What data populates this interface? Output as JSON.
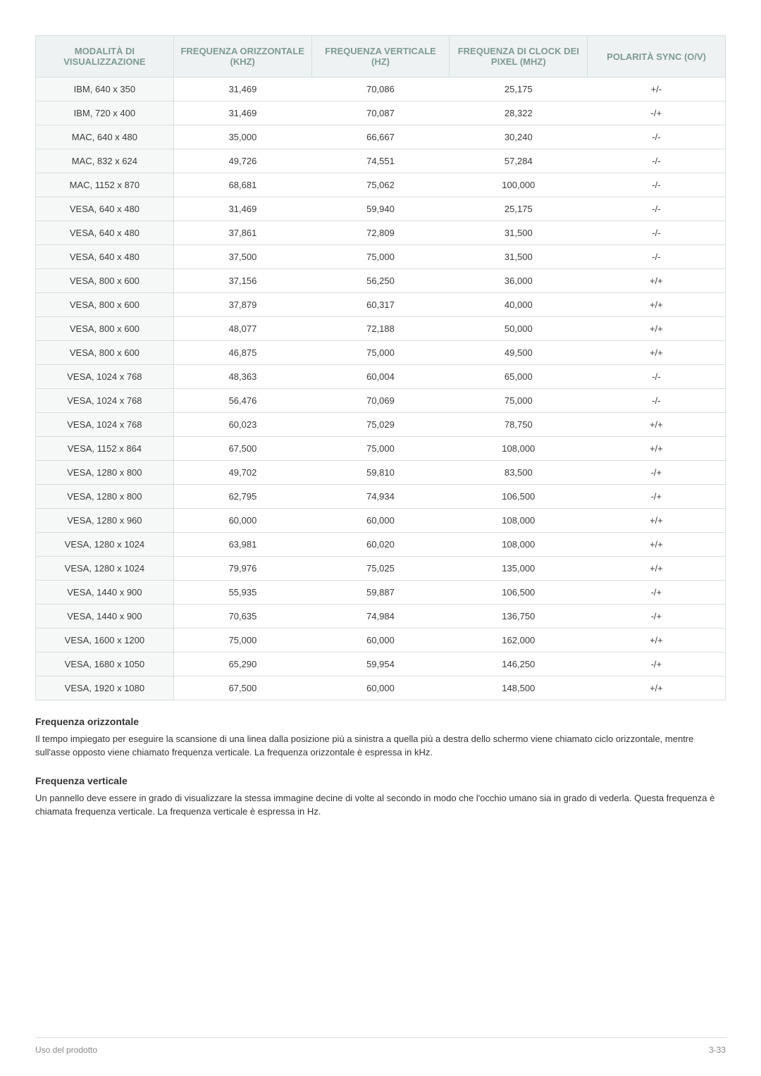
{
  "table": {
    "columns": [
      "MODALITÀ DI VISUALIZZAZIONE",
      "FREQUENZA ORIZZONTALE (KHZ)",
      "FREQUENZA VERTICALE (HZ)",
      "FREQUENZA DI CLOCK DEI PIXEL (MHZ)",
      "POLARITÀ SYNC (O/V)"
    ],
    "rows": [
      [
        "IBM, 640 x 350",
        "31,469",
        "70,086",
        "25,175",
        "+/-"
      ],
      [
        "IBM, 720 x 400",
        "31,469",
        "70,087",
        "28,322",
        "-/+"
      ],
      [
        "MAC, 640 x 480",
        "35,000",
        "66,667",
        "30,240",
        "-/-"
      ],
      [
        "MAC, 832 x 624",
        "49,726",
        "74,551",
        "57,284",
        "-/-"
      ],
      [
        "MAC, 1152 x 870",
        "68,681",
        "75,062",
        "100,000",
        "-/-"
      ],
      [
        "VESA, 640 x 480",
        "31,469",
        "59,940",
        "25,175",
        "-/-"
      ],
      [
        "VESA, 640 x 480",
        "37,861",
        "72,809",
        "31,500",
        "-/-"
      ],
      [
        "VESA, 640 x 480",
        "37,500",
        "75,000",
        "31,500",
        "-/-"
      ],
      [
        "VESA, 800 x 600",
        "37,156",
        "56,250",
        "36,000",
        "+/+"
      ],
      [
        "VESA, 800 x 600",
        "37,879",
        "60,317",
        "40,000",
        "+/+"
      ],
      [
        "VESA, 800 x 600",
        "48,077",
        "72,188",
        "50,000",
        "+/+"
      ],
      [
        "VESA, 800 x 600",
        "46,875",
        "75,000",
        "49,500",
        "+/+"
      ],
      [
        "VESA, 1024 x 768",
        "48,363",
        "60,004",
        "65,000",
        "-/-"
      ],
      [
        "VESA, 1024 x 768",
        "56,476",
        "70,069",
        "75,000",
        "-/-"
      ],
      [
        "VESA, 1024 x 768",
        "60,023",
        "75,029",
        "78,750",
        "+/+"
      ],
      [
        "VESA, 1152 x 864",
        "67,500",
        "75,000",
        "108,000",
        "+/+"
      ],
      [
        "VESA, 1280 x 800",
        "49,702",
        "59,810",
        "83,500",
        "-/+"
      ],
      [
        "VESA, 1280 x 800",
        "62,795",
        "74,934",
        "106,500",
        "-/+"
      ],
      [
        "VESA, 1280 x 960",
        "60,000",
        "60,000",
        "108,000",
        "+/+"
      ],
      [
        "VESA, 1280 x 1024",
        "63,981",
        "60,020",
        "108,000",
        "+/+"
      ],
      [
        "VESA, 1280 x 1024",
        "79,976",
        "75,025",
        "135,000",
        "+/+"
      ],
      [
        "VESA, 1440 x 900",
        "55,935",
        "59,887",
        "106,500",
        "-/+"
      ],
      [
        "VESA, 1440 x 900",
        "70,635",
        "74,984",
        "136,750",
        "-/+"
      ],
      [
        "VESA, 1600 x 1200",
        "75,000",
        "60,000",
        "162,000",
        "+/+"
      ],
      [
        "VESA, 1680 x 1050",
        "65,290",
        "59,954",
        "146,250",
        "-/+"
      ],
      [
        "VESA, 1920 x 1080",
        "67,500",
        "60,000",
        "148,500",
        "+/+"
      ]
    ]
  },
  "sections": {
    "s1_title": "Frequenza orizzontale",
    "s1_body": "Il tempo impiegato per eseguire la scansione di una linea dalla posizione più a sinistra a quella più a destra dello schermo viene chiamato ciclo orizzontale, mentre sull'asse opposto viene chiamato frequenza verticale. La frequenza orizzontale è espressa in kHz.",
    "s2_title": "Frequenza verticale",
    "s2_body": "Un pannello deve essere in grado di visualizzare la stessa immagine decine di volte al secondo in modo che l'occhio umano sia in grado di vederla. Questa frequenza è chiamata frequenza verticale. La frequenza verticale è espressa in Hz."
  },
  "footer": {
    "left": "Uso del prodotto",
    "right": "3-33"
  },
  "colors": {
    "header_bg": "#eef2f2",
    "header_text": "#7f9994",
    "first_col_bg": "#f6f8f8",
    "border": "#d6dede",
    "body_text": "#3a3a3a",
    "footer_text": "#888888"
  }
}
